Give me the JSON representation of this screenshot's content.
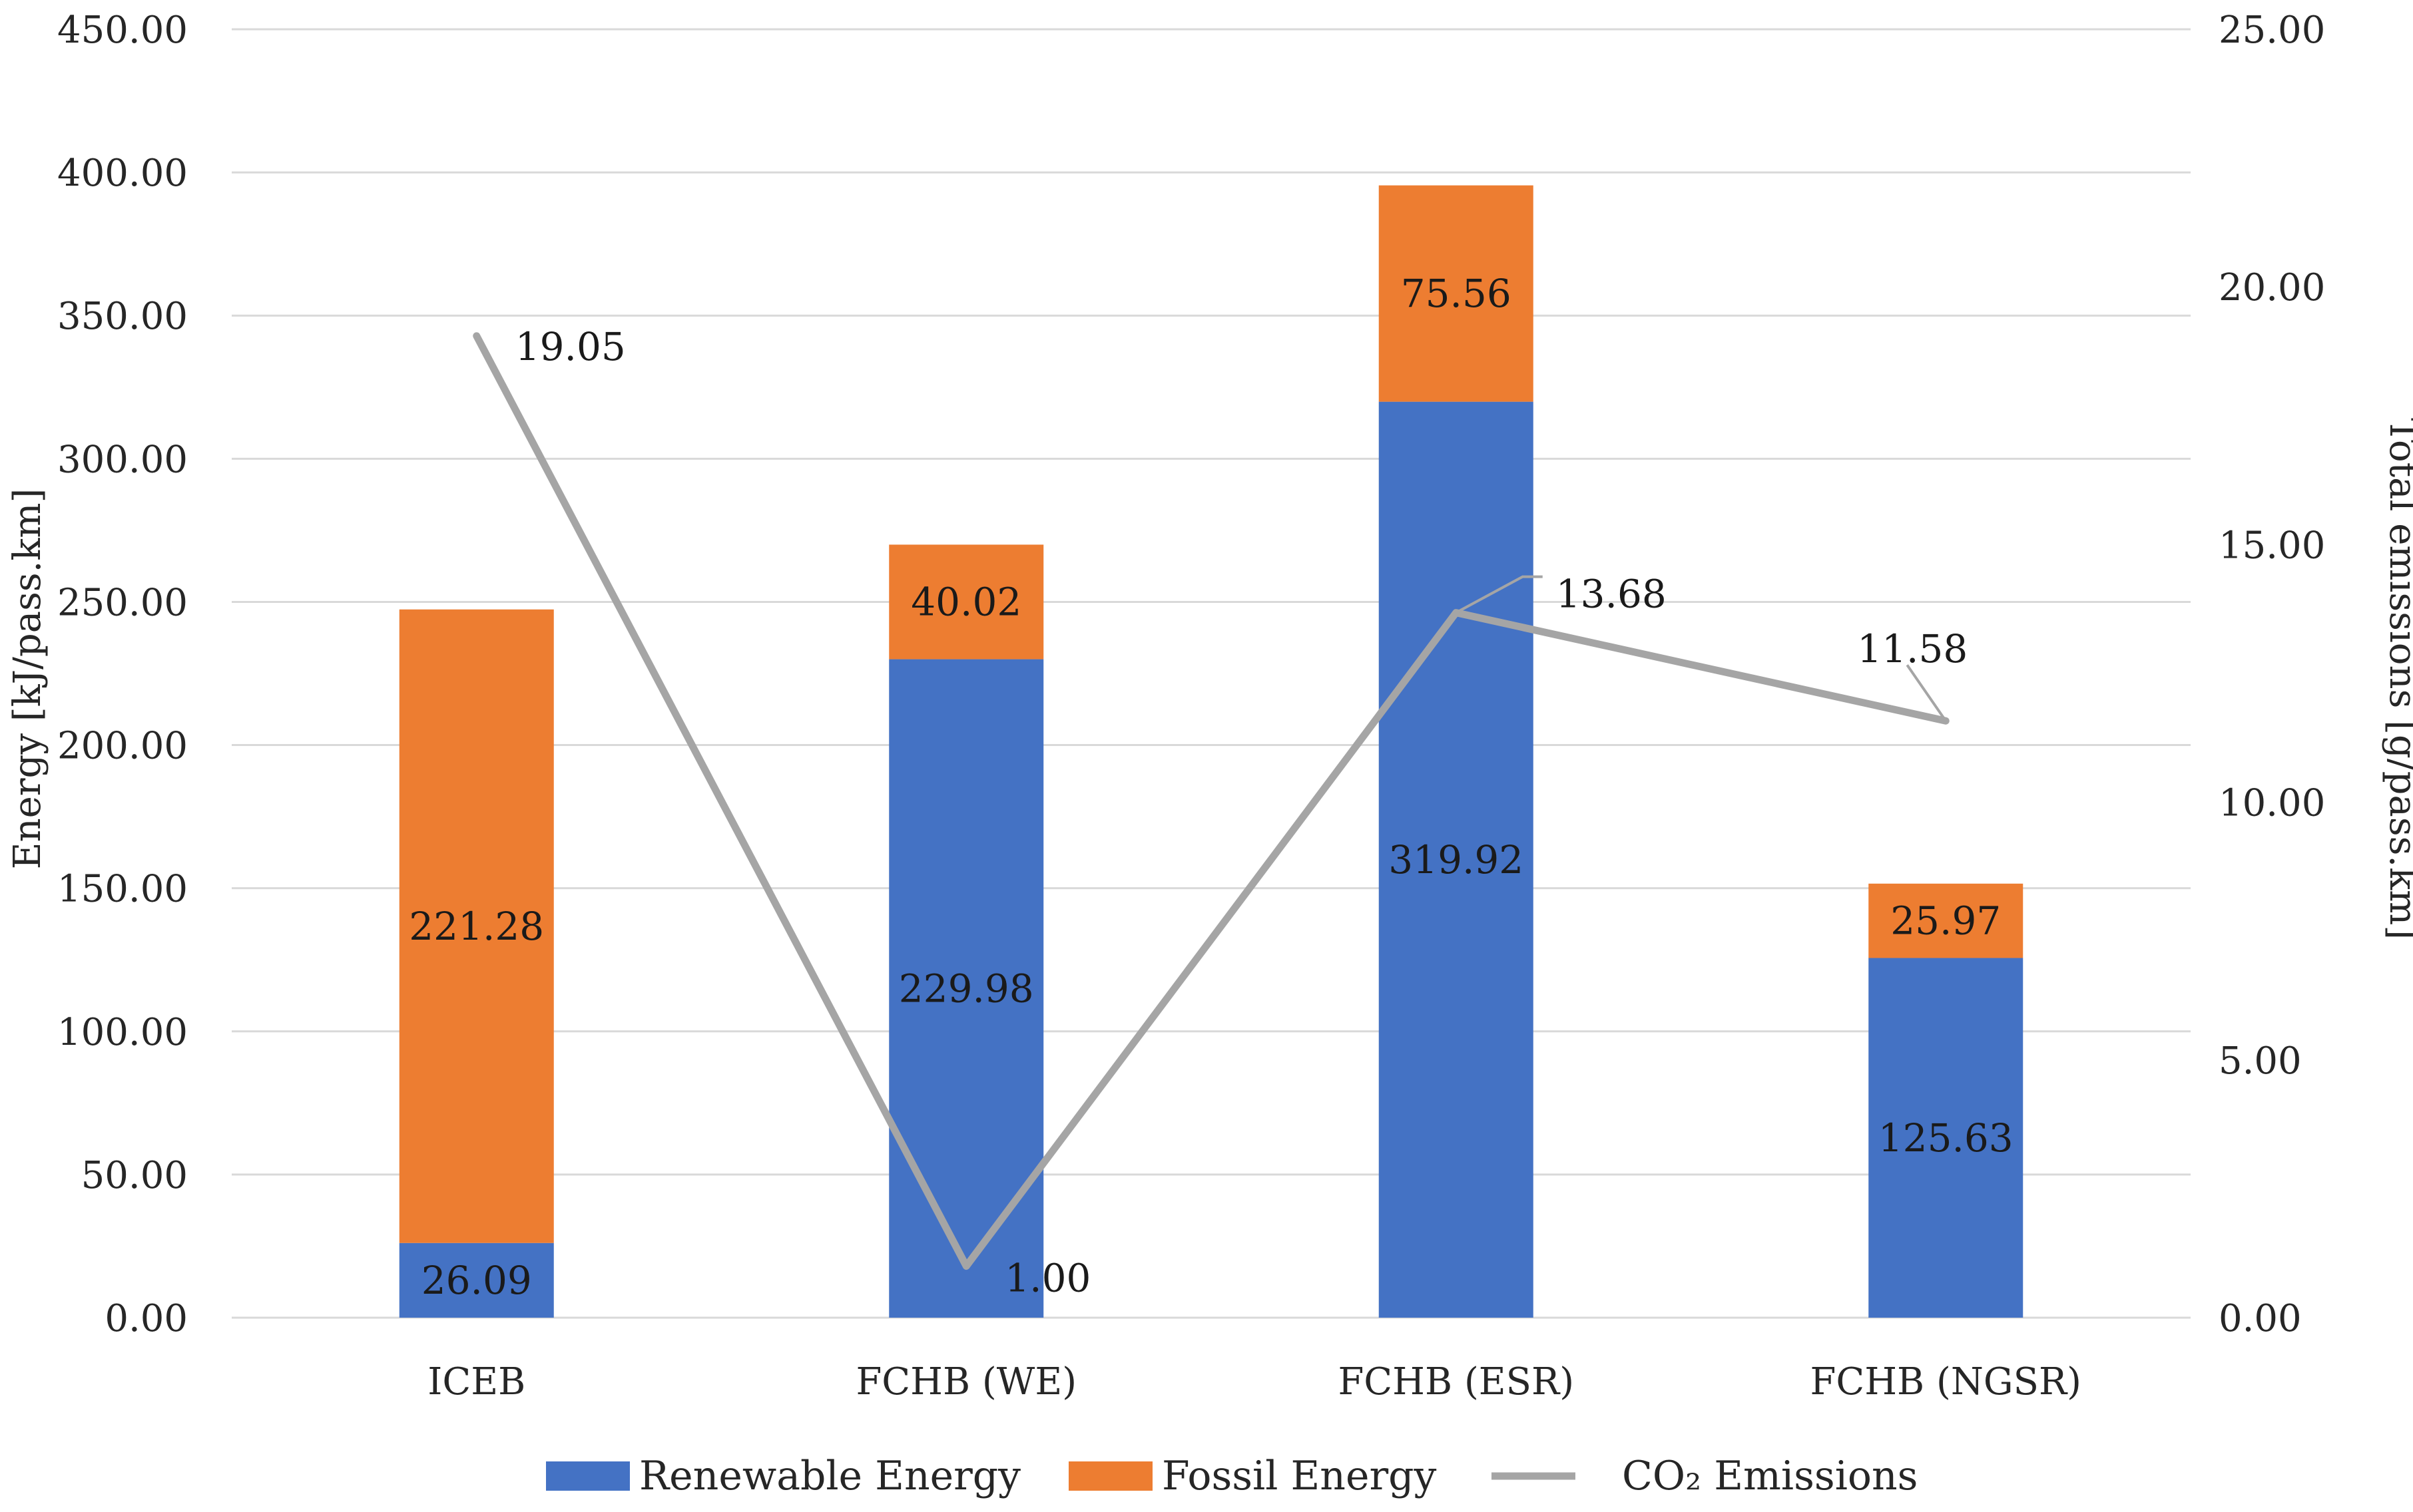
{
  "chart_data": {
    "type": "bar",
    "stacked": true,
    "categories": [
      "ICEB",
      "FCHB (WE)",
      "FCHB (ESR)",
      "FCHB (NGSR)"
    ],
    "series": [
      {
        "name": "Renewable Energy",
        "kind": "bar",
        "axis": "left",
        "color": "#4472C4",
        "values": [
          26.09,
          229.98,
          319.92,
          125.63
        ],
        "labels": [
          "26.09",
          "229.98",
          "319.92",
          "125.63"
        ]
      },
      {
        "name": "Fossil Energy",
        "kind": "bar",
        "axis": "left",
        "color": "#ED7D31",
        "values": [
          221.28,
          40.02,
          75.56,
          25.97
        ],
        "labels": [
          "221.28",
          "40.02",
          "75.56",
          "25.97"
        ]
      },
      {
        "name": "CO₂ Emissions",
        "kind": "line",
        "axis": "right",
        "color": "#A5A5A5",
        "values": [
          19.05,
          1.0,
          13.68,
          11.58
        ],
        "labels": [
          "19.05",
          "1.00",
          "13.68",
          "11.58"
        ]
      }
    ],
    "y_left": {
      "label": "Energy [kJ/pass.km]",
      "ylim": [
        0,
        450
      ],
      "ticks": [
        "0.00",
        "50.00",
        "100.00",
        "150.00",
        "200.00",
        "250.00",
        "300.00",
        "350.00",
        "400.00",
        "450.00"
      ]
    },
    "y_right": {
      "label": "Total emissions [g/pass.km]",
      "ylim": [
        0,
        25
      ],
      "ticks": [
        "0.00",
        "5.00",
        "10.00",
        "15.00",
        "20.00",
        "25.00"
      ]
    },
    "grid": true,
    "legend": {
      "position": "bottom",
      "items": [
        "Renewable Energy",
        "Fossil Energy",
        "CO₂ Emissions"
      ]
    }
  }
}
